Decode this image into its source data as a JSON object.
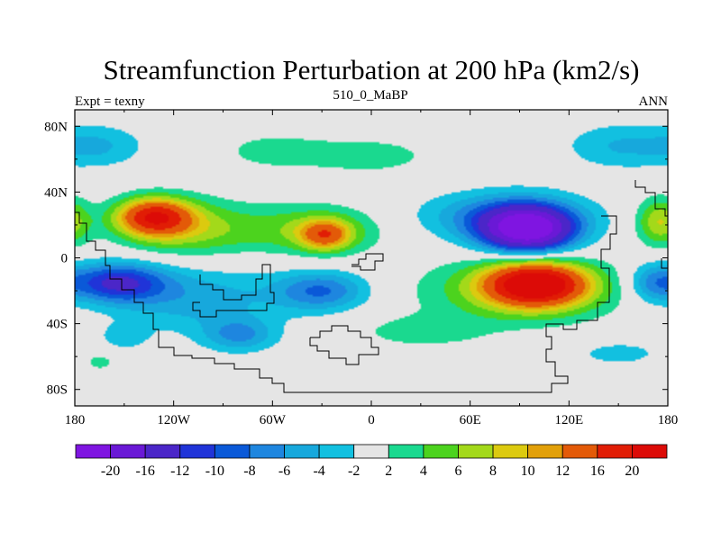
{
  "chart_data": {
    "type": "contour-map",
    "title": "Streamfunction Perturbation at 200 hPa (km2/s)",
    "left_string": "Expt = texny",
    "center_string": "510_0_MaBP",
    "right_string": "ANN",
    "x_range": [
      -180,
      180
    ],
    "y_range": [
      -90,
      90
    ],
    "x_ticks": [
      {
        "value": -180,
        "label": "180"
      },
      {
        "value": -120,
        "label": "120W"
      },
      {
        "value": -60,
        "label": "60W"
      },
      {
        "value": 0,
        "label": "0"
      },
      {
        "value": 60,
        "label": "60E"
      },
      {
        "value": 120,
        "label": "120E"
      },
      {
        "value": 180,
        "label": "180"
      }
    ],
    "y_ticks": [
      {
        "value": 80,
        "label": "80N"
      },
      {
        "value": 40,
        "label": "40N"
      },
      {
        "value": 0,
        "label": "0"
      },
      {
        "value": -40,
        "label": "40S"
      },
      {
        "value": -80,
        "label": "80S"
      }
    ],
    "levels": [
      -20,
      -16,
      -12,
      -10,
      -8,
      -6,
      -4,
      -2,
      2,
      4,
      6,
      8,
      10,
      12,
      16,
      20
    ],
    "level_labels": [
      "-20",
      "-16",
      "-12",
      "-10",
      "-8",
      "-6",
      "-4",
      "-2",
      "2",
      "4",
      "6",
      "8",
      "10",
      "12",
      "16",
      "20"
    ],
    "colors": [
      "#7f15e1",
      "#6a19d6",
      "#4b26c8",
      "#2034d8",
      "#0a59d8",
      "#1e86df",
      "#17a8dc",
      "#12c0e0",
      "#e5e5e5",
      "#1ad98f",
      "#4cd31e",
      "#a3d91a",
      "#dcca0f",
      "#e2a009",
      "#e35a08",
      "#e11d05",
      "#dc0b07"
    ],
    "anomalies": [
      {
        "lon": -132,
        "lat": 25,
        "rx": 22,
        "ry": 11,
        "value": 17
      },
      {
        "lon": -112,
        "lat": 18,
        "rx": 40,
        "ry": 17,
        "value": 7
      },
      {
        "lon": -28,
        "lat": 14,
        "rx": 15,
        "ry": 9,
        "value": 11
      },
      {
        "lon": -35,
        "lat": 17,
        "rx": 42,
        "ry": 15,
        "value": 6
      },
      {
        "lon": 95,
        "lat": 17,
        "rx": 28,
        "ry": 14,
        "value": -22
      },
      {
        "lon": 80,
        "lat": 25,
        "rx": 50,
        "ry": 15,
        "value": -7
      },
      {
        "lon": 100,
        "lat": -16,
        "rx": 30,
        "ry": 13,
        "value": 22
      },
      {
        "lon": 90,
        "lat": -20,
        "rx": 60,
        "ry": 20,
        "value": 6
      },
      {
        "lon": -155,
        "lat": -15,
        "rx": 30,
        "ry": 12,
        "value": -12
      },
      {
        "lon": -105,
        "lat": -25,
        "rx": 52,
        "ry": 20,
        "value": -5
      },
      {
        "lon": -30,
        "lat": -20,
        "rx": 28,
        "ry": 12,
        "value": -8
      },
      {
        "lon": -80,
        "lat": -47,
        "rx": 22,
        "ry": 10,
        "value": -6
      },
      {
        "lon": -165,
        "lat": 68,
        "rx": 28,
        "ry": 13,
        "value": -4
      },
      {
        "lon": 150,
        "lat": 68,
        "rx": 33,
        "ry": 14,
        "value": -4
      },
      {
        "lon": 0,
        "lat": 62,
        "rx": 40,
        "ry": 12,
        "value": 3
      },
      {
        "lon": -60,
        "lat": 65,
        "rx": 35,
        "ry": 12,
        "value": 2.8
      },
      {
        "lon": 175,
        "lat": 22,
        "rx": 14,
        "ry": 14,
        "value": 8
      },
      {
        "lon": 170,
        "lat": -15,
        "rx": 14,
        "ry": 12,
        "value": -5
      },
      {
        "lon": 150,
        "lat": -58,
        "rx": 28,
        "ry": 8,
        "value": -3
      },
      {
        "lon": -165,
        "lat": -63,
        "rx": 10,
        "ry": 6,
        "value": 3
      },
      {
        "lon": 30,
        "lat": -45,
        "rx": 40,
        "ry": 10,
        "value": 3
      },
      {
        "lon": -150,
        "lat": -48,
        "rx": 15,
        "ry": 8,
        "value": -3
      }
    ]
  }
}
